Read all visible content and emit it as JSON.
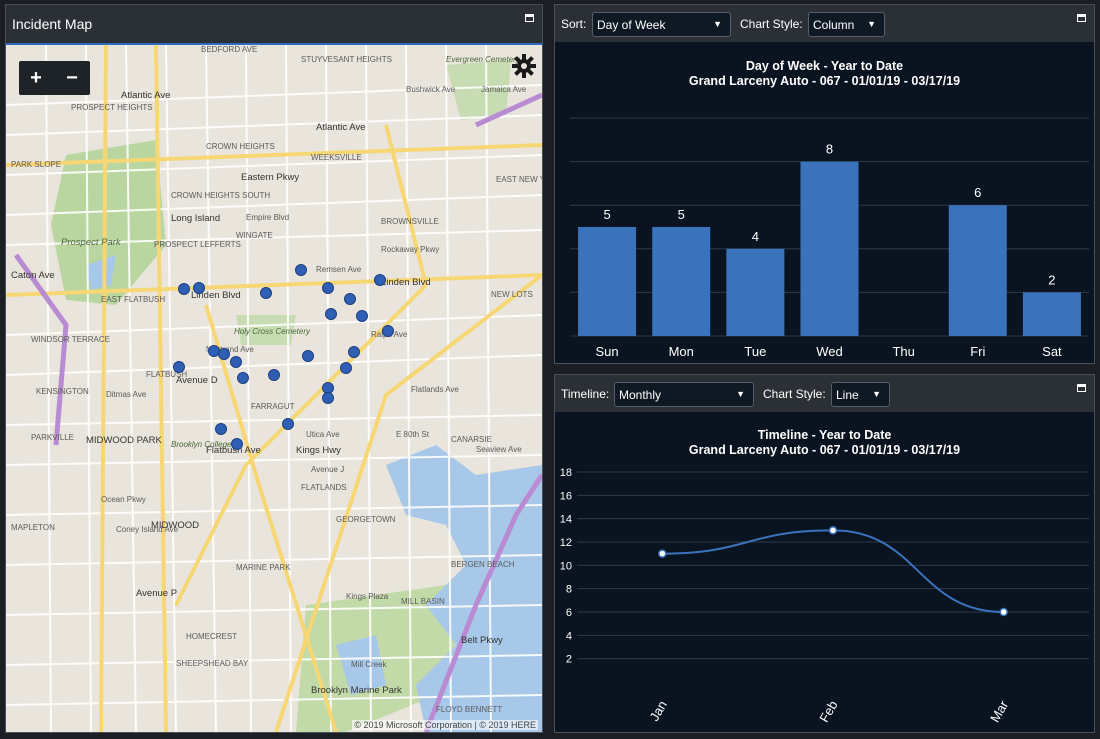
{
  "map_panel": {
    "title": "Incident Map",
    "zoom_in": "+",
    "zoom_out": "−",
    "copyright": "© 2019 Microsoft Corporation | © 2019 HERE",
    "labels": [
      "BEDFORD AVE",
      "STUYVESANT HEIGHTS",
      "Atlantic Ave",
      "Atlantic Ave",
      "PROSPECT HEIGHTS",
      "CROWN HEIGHTS",
      "WEEKSVILLE",
      "Eastern Pkwy",
      "PARK SLOPE",
      "CROWN HEIGHTS SOUTH",
      "Long Island",
      "Empire Blvd",
      "BROWNSVILLE",
      "Prospect Park",
      "PROSPECT LEFFERTS",
      "WINGATE",
      "Remsen Ave",
      "Linden Blvd",
      "Linden Blvd",
      "EAST FLATBUSH",
      "Caton Ave",
      "Holy Cross Cemetery",
      "WINDSOR TERRACE",
      "KENSINGTON",
      "FLATBUSH",
      "Avenue D",
      "FARRAGUT",
      "Kings Hwy",
      "Ditmas Ave",
      "PARKVILLE",
      "MIDWOOD PARK",
      "Brooklyn College",
      "Avenue J",
      "FLATLANDS",
      "MIDWOOD",
      "GEORGETOWN",
      "MAPLETON",
      "CANARSIE",
      "BERGEN BEACH",
      "MARINE PARK",
      "Avenue P",
      "MILL BASIN",
      "Kings Plaza",
      "HOMECREST",
      "SHEEPSHEAD BAY",
      "Mill Creek",
      "Brooklyn Marine Park",
      "FLOYD BENNETT",
      "Belt Pkwy",
      "Ocean Pkwy",
      "Flatbush Ave",
      "Evergreen Cemetery",
      "Bushwick Ave",
      "Jamaica Ave",
      "EAST NEW YORK",
      "NEW LOTS",
      "Rockaway Pkwy",
      "Ralph Ave",
      "Utica Ave",
      "Nostrand Ave",
      "Coney Island Ave",
      "E 80th St",
      "Seaview Ave",
      "Flatlands Ave"
    ],
    "incidents": 28
  },
  "dow_panel": {
    "sort_label": "Sort:",
    "sort_value": "Day of Week",
    "style_label": "Chart Style:",
    "style_value": "Column",
    "title_line1": "Day of Week - Year to Date",
    "title_line2": "Grand Larceny Auto - 067 - 01/01/19 - 03/17/19"
  },
  "timeline_panel": {
    "timeline_label": "Timeline:",
    "timeline_value": "Monthly",
    "style_label": "Chart Style:",
    "style_value": "Line",
    "title_line1": "Timeline - Year to Date",
    "title_line2": "Grand Larceny Auto - 067 - 01/01/19 - 03/17/19"
  },
  "chart_data": [
    {
      "type": "bar",
      "categories": [
        "Sun",
        "Mon",
        "Tue",
        "Wed",
        "Thu",
        "Fri",
        "Sat"
      ],
      "values": [
        5,
        5,
        4,
        8,
        0,
        6,
        2
      ],
      "value_labels": [
        "5",
        "5",
        "4",
        "8",
        "",
        "6",
        "2"
      ],
      "title": "Day of Week - Year to Date",
      "subtitle": "Grand Larceny Auto - 067 - 01/01/19 - 03/17/19",
      "ylim": [
        0,
        10
      ],
      "grid": true,
      "bar_color": "#3a73bb"
    },
    {
      "type": "line",
      "categories": [
        "Jan",
        "Feb",
        "Mar"
      ],
      "values": [
        11,
        13,
        6
      ],
      "title": "Timeline - Year to Date",
      "subtitle": "Grand Larceny Auto - 067 - 01/01/19 - 03/17/19",
      "ylim": [
        0,
        18
      ],
      "yticks": [
        "18",
        "16",
        "14",
        "12",
        "10",
        "8",
        "6",
        "4",
        "2"
      ],
      "grid": true,
      "line_color": "#3a73bb"
    }
  ]
}
